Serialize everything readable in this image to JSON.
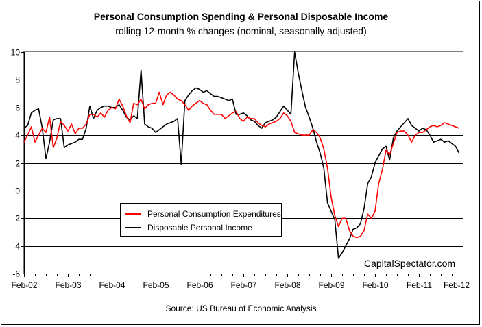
{
  "chart_data": {
    "type": "line",
    "title": "Personal Consumption Spending & Personal Disposable Income",
    "subtitle": "rolling 12-month % changes (nominal, seasonally adjusted)",
    "source": "Source: US Bureau of Economic Analysis",
    "watermark": "CapitalSpectator.com",
    "ylim": [
      -6,
      10
    ],
    "yticks": [
      "10",
      "8",
      "6",
      "4",
      "2",
      "0",
      "-2",
      "-4",
      "-6"
    ],
    "ytick_values": [
      10,
      8,
      6,
      4,
      2,
      0,
      -2,
      -4,
      -6
    ],
    "xlim": [
      0,
      120
    ],
    "xticks": [
      "Feb-02",
      "Feb-03",
      "Feb-04",
      "Feb-05",
      "Feb-06",
      "Feb-07",
      "Feb-08",
      "Feb-09",
      "Feb-10",
      "Feb-11",
      "Feb-12"
    ],
    "xtick_values": [
      0,
      12,
      24,
      36,
      48,
      60,
      72,
      84,
      96,
      108,
      120
    ],
    "grid": "horizontal",
    "legend_position": "center-left",
    "colors": {
      "pce": "#ff0000",
      "dpi": "#000000",
      "grid": "#000000",
      "plot_bg": "#ffffff"
    },
    "series": [
      {
        "name": "Personal Consumption Expenditures",
        "color": "#ff0000",
        "x": [
          0,
          1,
          2,
          3,
          4,
          5,
          6,
          7,
          8,
          9,
          10,
          11,
          12,
          13,
          14,
          15,
          16,
          17,
          18,
          19,
          20,
          21,
          22,
          23,
          24,
          25,
          26,
          27,
          28,
          29,
          30,
          31,
          32,
          33,
          34,
          35,
          36,
          37,
          38,
          39,
          40,
          41,
          42,
          43,
          44,
          45,
          46,
          47,
          48,
          49,
          50,
          51,
          52,
          53,
          54,
          55,
          56,
          57,
          58,
          59,
          60,
          61,
          62,
          63,
          64,
          65,
          66,
          67,
          68,
          69,
          70,
          71,
          72,
          73,
          74,
          75,
          76,
          77,
          78,
          79,
          80,
          81,
          82,
          83,
          84,
          85,
          86,
          87,
          88,
          89,
          90,
          91,
          92,
          93,
          94,
          95,
          96,
          97,
          98,
          99,
          100,
          101,
          102,
          103,
          104,
          105,
          106,
          107,
          108,
          109,
          110,
          111,
          112,
          113,
          114,
          115,
          116,
          117,
          118,
          119
        ],
        "y": [
          3.5,
          4.0,
          4.6,
          3.5,
          4.0,
          4.5,
          4.2,
          5.3,
          3.1,
          3.8,
          5.0,
          4.7,
          4.3,
          4.8,
          4.1,
          4.5,
          4.5,
          4.8,
          5.5,
          5.5,
          5.3,
          5.6,
          5.3,
          5.8,
          6.0,
          5.9,
          6.6,
          6.1,
          5.4,
          4.9,
          6.3,
          6.2,
          6.6,
          5.9,
          6.2,
          6.3,
          6.3,
          7.1,
          6.2,
          6.9,
          7.1,
          6.9,
          6.6,
          6.5,
          6.2,
          5.8,
          6.1,
          6.3,
          6.5,
          6.3,
          6.2,
          5.8,
          5.5,
          5.5,
          5.5,
          5.2,
          5.4,
          5.6,
          5.7,
          5.2,
          5.0,
          5.3,
          5.2,
          5.2,
          4.9,
          4.7,
          4.6,
          4.8,
          4.9,
          5.0,
          5.2,
          5.6,
          5.4,
          5.0,
          4.2,
          4.1,
          4.0,
          4.0,
          4.0,
          4.4,
          4.2,
          3.8,
          3.0,
          1.6,
          -0.5,
          -1.8,
          -2.6,
          -2.0,
          -2.0,
          -2.9,
          -3.3,
          -3.4,
          -3.3,
          -2.9,
          -1.7,
          -2.0,
          -1.5,
          0.5,
          1.5,
          2.9,
          2.6,
          3.4,
          4.2,
          4.3,
          4.3,
          4.0,
          3.5,
          4.0,
          4.2,
          4.2,
          4.4,
          4.6,
          4.7,
          4.6,
          4.7,
          4.9,
          4.8,
          4.7,
          4.6,
          4.5
        ]
      },
      {
        "name": "Disposable Personal Income",
        "color": "#000000",
        "x": [
          0,
          1,
          2,
          3,
          4,
          5,
          6,
          7,
          8,
          9,
          10,
          11,
          12,
          13,
          14,
          15,
          16,
          17,
          18,
          19,
          20,
          21,
          22,
          23,
          24,
          25,
          26,
          27,
          28,
          29,
          30,
          31,
          32,
          33,
          34,
          35,
          36,
          37,
          38,
          39,
          40,
          41,
          42,
          43,
          44,
          45,
          46,
          47,
          48,
          49,
          50,
          51,
          52,
          53,
          54,
          55,
          56,
          57,
          58,
          59,
          60,
          61,
          62,
          63,
          64,
          65,
          66,
          67,
          68,
          69,
          70,
          71,
          72,
          73,
          74,
          75,
          76,
          77,
          78,
          79,
          80,
          81,
          82,
          83,
          84,
          85,
          86,
          87,
          88,
          89,
          90,
          91,
          92,
          93,
          94,
          95,
          96,
          97,
          98,
          99,
          100,
          101,
          102,
          103,
          104,
          105,
          106,
          107,
          108,
          109,
          110,
          111,
          112,
          113,
          114,
          115,
          116,
          117,
          118,
          119
        ],
        "y": [
          4.5,
          4.7,
          5.6,
          5.8,
          5.9,
          4.5,
          2.3,
          3.5,
          5.1,
          5.2,
          5.2,
          3.1,
          3.3,
          3.4,
          3.5,
          3.7,
          3.7,
          4.5,
          6.1,
          5.2,
          5.8,
          6.0,
          6.1,
          6.1,
          6.0,
          6.0,
          6.2,
          5.8,
          5.3,
          5.1,
          5.4,
          5.2,
          8.7,
          4.8,
          4.6,
          4.5,
          4.2,
          4.4,
          4.6,
          4.8,
          4.9,
          5.0,
          5.2,
          1.9,
          6.5,
          6.9,
          7.2,
          7.4,
          7.3,
          7.1,
          7.2,
          7.0,
          6.8,
          6.8,
          6.7,
          6.6,
          6.5,
          6.6,
          5.5,
          5.5,
          5.6,
          5.4,
          5.1,
          5.0,
          4.7,
          4.5,
          4.9,
          5.0,
          5.1,
          5.3,
          5.7,
          6.1,
          5.8,
          5.5,
          10.0,
          8.5,
          7.2,
          6.0,
          5.3,
          4.5,
          3.5,
          2.7,
          1.6,
          -0.9,
          -1.5,
          -2.1,
          -4.9,
          -4.5,
          -4.0,
          -3.5,
          -2.8,
          -2.7,
          -2.4,
          -1.3,
          0.5,
          1.0,
          2.0,
          2.5,
          3.0,
          3.2,
          2.2,
          3.8,
          4.3,
          4.6,
          4.9,
          5.2,
          4.7,
          4.5,
          4.3,
          4.5,
          4.4,
          4.0,
          3.5,
          3.6,
          3.7,
          3.5,
          3.6,
          3.4,
          3.2,
          2.7
        ]
      }
    ]
  }
}
